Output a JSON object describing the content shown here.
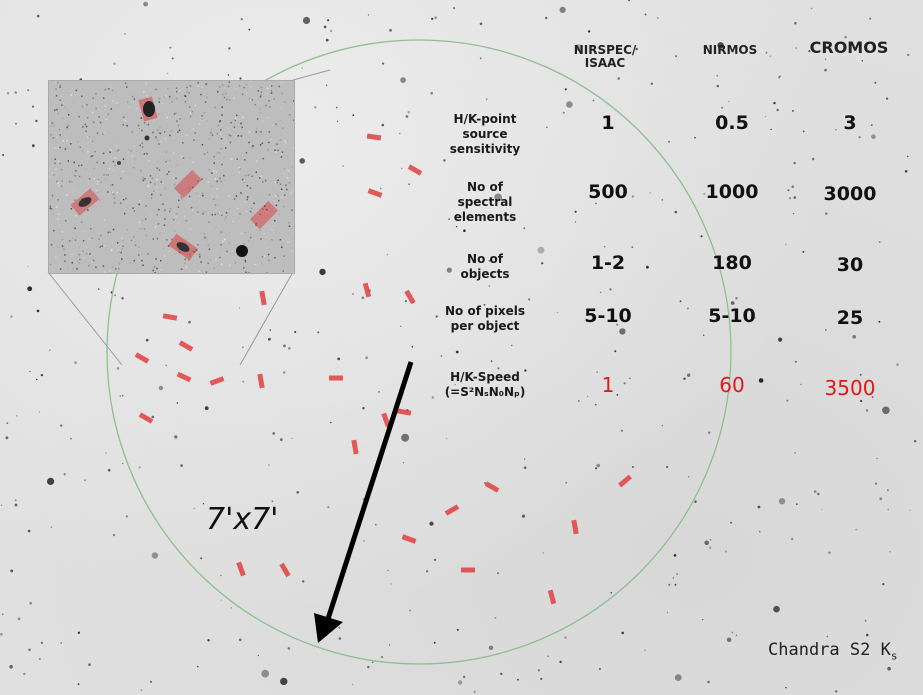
{
  "columns": [
    {
      "label_line1": "NIRSPEC/",
      "label_line2": "ISAAC"
    },
    {
      "label_line1": "NIRMOS",
      "label_line2": ""
    },
    {
      "label_line1": "CROMOS",
      "label_line2": ""
    }
  ],
  "rows": [
    {
      "label_lines": [
        "H/K-point",
        "source",
        "sensitivity"
      ],
      "values": [
        "1",
        "0.5",
        "3"
      ]
    },
    {
      "label_lines": [
        "No of",
        "spectral",
        "elements"
      ],
      "values": [
        "500",
        "1000",
        "3000"
      ]
    },
    {
      "label_lines": [
        "No of",
        "objects"
      ],
      "values": [
        "1-2",
        "180",
        "30"
      ]
    },
    {
      "label_lines": [
        "No of pixels",
        "per object"
      ],
      "values": [
        "5-10",
        "5-10",
        "25"
      ]
    },
    {
      "label_lines": [
        "H/K-Speed",
        "(=S²NₛN₀Nₚ)"
      ],
      "values": [
        "1",
        "60",
        "3500"
      ]
    }
  ],
  "fov_label": "7'x7'",
  "credit": {
    "text": "Chandra S2 K",
    "subscript": "s"
  },
  "colors": {
    "speed_values": "#e01818",
    "circle": "#8fbf8f",
    "slits": "#e04040",
    "arrow": "#000000"
  }
}
